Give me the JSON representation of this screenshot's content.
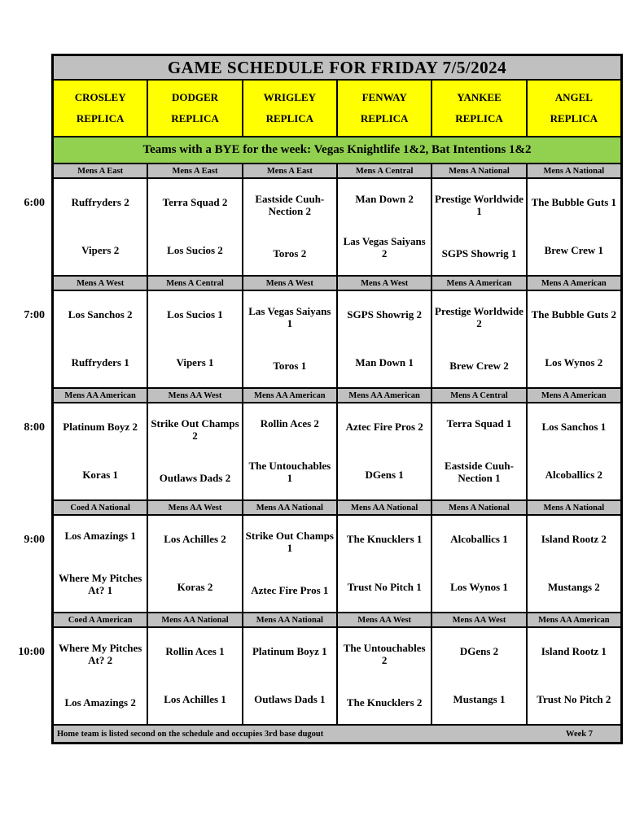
{
  "title": "GAME SCHEDULE FOR FRIDAY 7/5/2024",
  "fields": [
    {
      "name": "CROSLEY",
      "type": "REPLICA"
    },
    {
      "name": "DODGER",
      "type": "REPLICA"
    },
    {
      "name": "WRIGLEY",
      "type": "REPLICA"
    },
    {
      "name": "FENWAY",
      "type": "REPLICA"
    },
    {
      "name": "YANKEE",
      "type": "REPLICA"
    },
    {
      "name": "ANGEL",
      "type": "REPLICA"
    }
  ],
  "bye_notice": "Teams with a BYE for the week: Vegas Knightlife 1&2, Bat Intentions 1&2",
  "time_slots": [
    {
      "time": "6:00",
      "games": [
        {
          "division": "Mens A East",
          "away": "Ruffryders 2",
          "home": "Vipers 2"
        },
        {
          "division": "Mens A East",
          "away": "Terra Squad 2",
          "home": "Los Sucios 2"
        },
        {
          "division": "Mens A East",
          "away": "Eastside Cuuh-Nection 2",
          "home": "Toros 2"
        },
        {
          "division": "Mens A Central",
          "away": "Man Down 2",
          "home": "Las Vegas Saiyans 2"
        },
        {
          "division": "Mens A National",
          "away": "Prestige Worldwide 1",
          "home": "SGPS Showrig 1"
        },
        {
          "division": "Mens A National",
          "away": "The Bubble Guts 1",
          "home": "Brew Crew 1"
        }
      ]
    },
    {
      "time": "7:00",
      "games": [
        {
          "division": "Mens A West",
          "away": "Los Sanchos 2",
          "home": "Ruffryders 1"
        },
        {
          "division": "Mens A Central",
          "away": "Los Sucios 1",
          "home": "Vipers 1"
        },
        {
          "division": "Mens A West",
          "away": "Las Vegas Saiyans 1",
          "home": "Toros 1"
        },
        {
          "division": "Mens A West",
          "away": "SGPS Showrig 2",
          "home": "Man Down 1"
        },
        {
          "division": "Mens A American",
          "away": "Prestige Worldwide 2",
          "home": "Brew Crew 2"
        },
        {
          "division": "Mens A American",
          "away": "The Bubble Guts 2",
          "home": "Los Wynos 2"
        }
      ]
    },
    {
      "time": "8:00",
      "games": [
        {
          "division": "Mens AA American",
          "away": "Platinum Boyz 2",
          "home": "Koras 1"
        },
        {
          "division": "Mens AA West",
          "away": "Strike Out Champs 2",
          "home": "Outlaws Dads 2"
        },
        {
          "division": "Mens AA American",
          "away": "Rollin Aces 2",
          "home": "The Untouchables 1"
        },
        {
          "division": "Mens AA American",
          "away": "Aztec Fire Pros 2",
          "home": "DGens 1"
        },
        {
          "division": "Mens A Central",
          "away": "Terra Squad 1",
          "home": "Eastside Cuuh-Nection 1"
        },
        {
          "division": "Mens A American",
          "away": "Los Sanchos 1",
          "home": "Alcoballics 2"
        }
      ]
    },
    {
      "time": "9:00",
      "games": [
        {
          "division": "Coed A National",
          "away": "Los Amazings 1",
          "home": "Where My Pitches At? 1"
        },
        {
          "division": "Mens AA West",
          "away": "Los Achilles 2",
          "home": "Koras 2"
        },
        {
          "division": "Mens AA National",
          "away": "Strike Out Champs 1",
          "home": "Aztec Fire Pros 1"
        },
        {
          "division": "Mens AA National",
          "away": "The Knucklers 1",
          "home": "Trust No Pitch 1"
        },
        {
          "division": "Mens A National",
          "away": "Alcoballics 1",
          "home": "Los Wynos 1"
        },
        {
          "division": "Mens A National",
          "away": "Island Rootz 2",
          "home": "Mustangs 2"
        }
      ]
    },
    {
      "time": "10:00",
      "games": [
        {
          "division": "Coed A American",
          "away": "Where My Pitches At? 2",
          "home": "Los Amazings 2"
        },
        {
          "division": "Mens AA National",
          "away": "Rollin Aces 1",
          "home": "Los Achilles 1"
        },
        {
          "division": "Mens AA National",
          "away": "Platinum Boyz 1",
          "home": "Outlaws Dads 1"
        },
        {
          "division": "Mens AA West",
          "away": "The Untouchables 2",
          "home": "The Knucklers 2"
        },
        {
          "division": "Mens AA West",
          "away": "DGens 2",
          "home": "Mustangs 1"
        },
        {
          "division": "Mens AA American",
          "away": "Island Rootz 1",
          "home": "Trust No Pitch 2"
        }
      ]
    }
  ],
  "footer": {
    "note": "Home team is listed second on the schedule and occupies 3rd base dugout",
    "week": "Week 7"
  },
  "colors": {
    "header_gray": "#c0c0c0",
    "field_yellow": "#ffff00",
    "bye_green": "#92d050",
    "border_black": "#000000"
  }
}
